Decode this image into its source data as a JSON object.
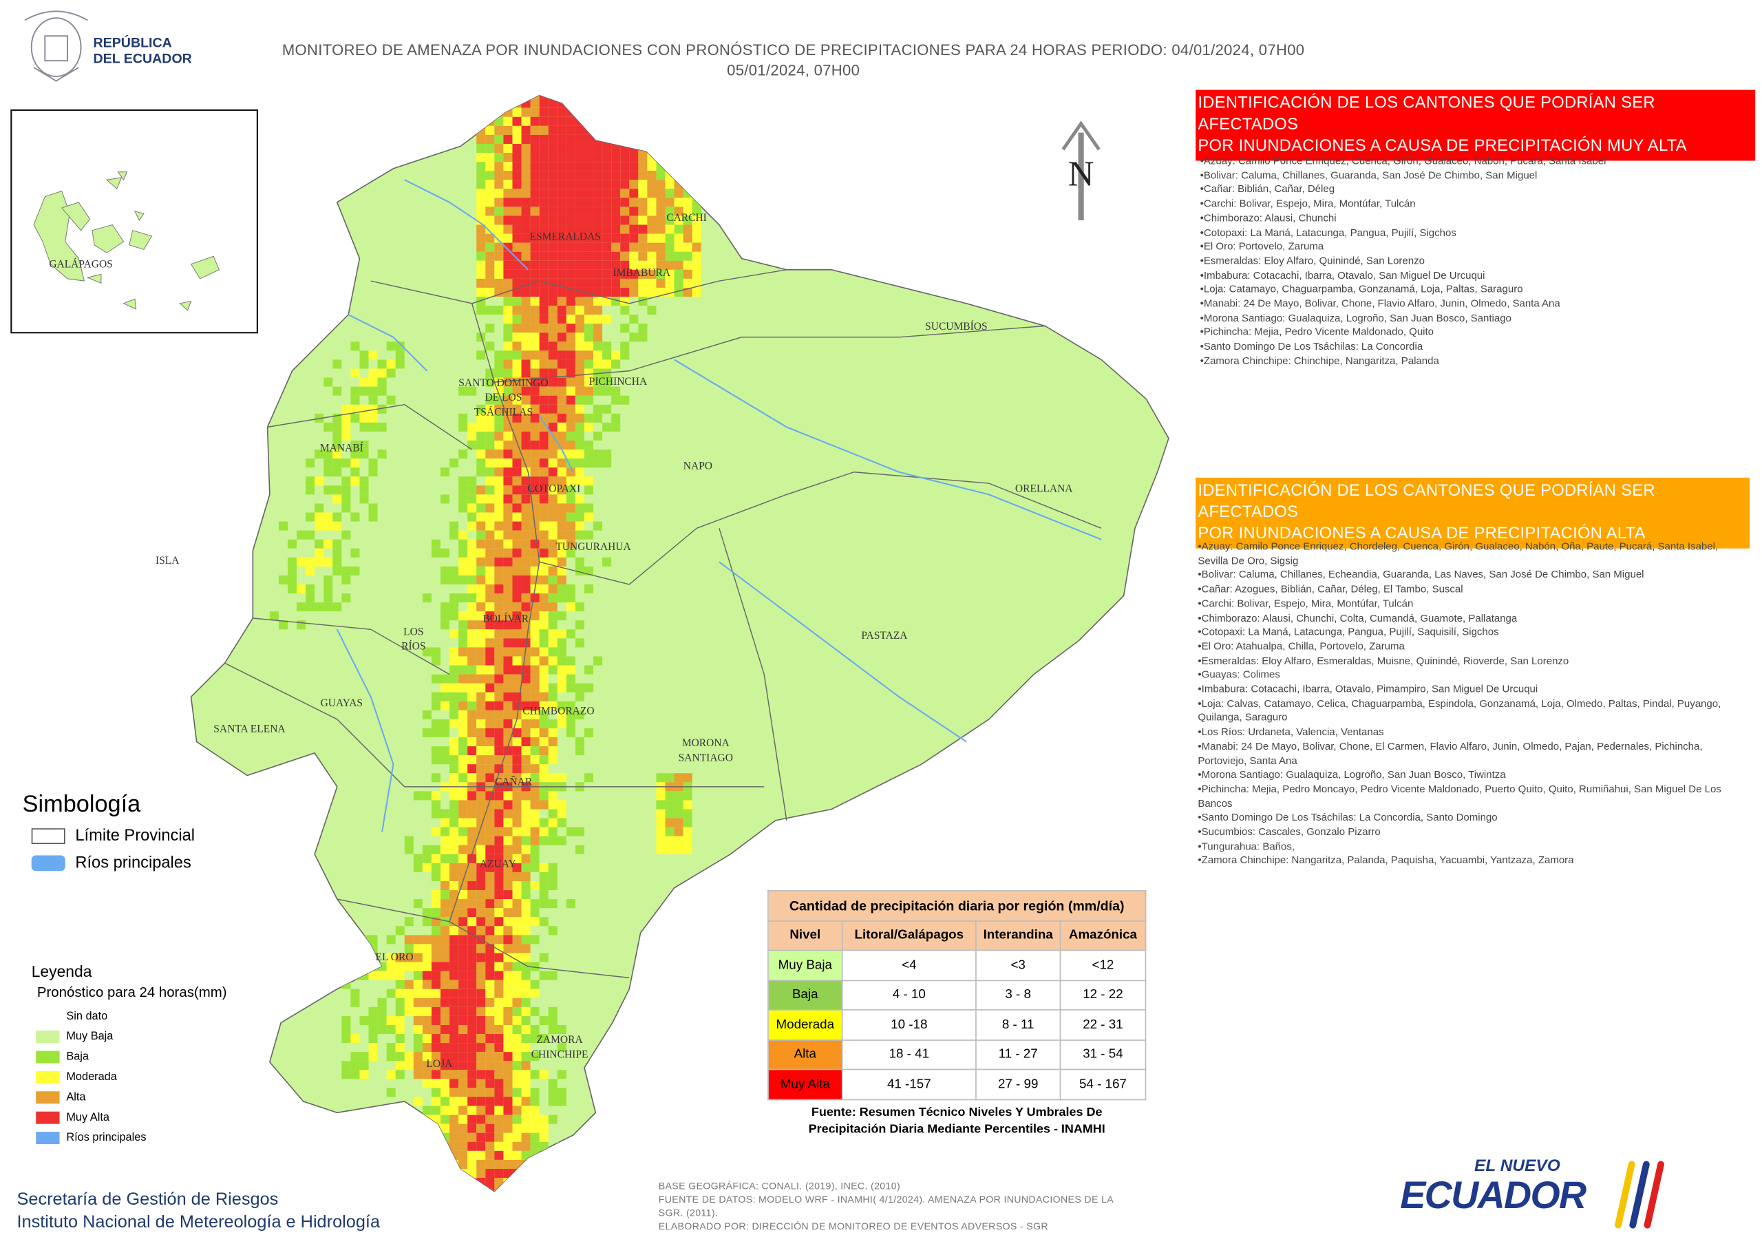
{
  "header": {
    "logo": [
      "REPÚBLICA",
      "DEL ECUADOR"
    ],
    "title": [
      "MONITOREO DE AMENAZA POR INUNDACIONES  CON PRONÓSTICO DE  PRECIPITACIONES PARA 24 HORAS  PERIODO: 04/01/2024, 07H00",
      "05/01/2024, 07H00"
    ]
  },
  "map": {
    "north": "N",
    "inset_label": "GALÁPAGOS",
    "provinces": [
      [
        "ESMERALDAS"
      ],
      [
        "CARCHI"
      ],
      [
        "IMBABURA"
      ],
      [
        "SUCUMBÍOS"
      ],
      [
        "SANTO DOMINGO",
        "DE LOS",
        "TSÁCHILAS"
      ],
      [
        "PICHINCHA"
      ],
      [
        "MANABÍ"
      ],
      [
        "NAPO"
      ],
      [
        "ORELLANA"
      ],
      [
        "COTOPAXI"
      ],
      [
        "ISLA"
      ],
      [
        "TUNGURAHUA"
      ],
      [
        "BOLÍVAR"
      ],
      [
        "LOS",
        "RÍOS"
      ],
      [
        "PASTAZA"
      ],
      [
        "GUAYAS"
      ],
      [
        "CHIMBORAZO"
      ],
      [
        "SANTA ELENA"
      ],
      [
        "MORONA",
        "SANTIAGO"
      ],
      [
        "CAÑAR"
      ],
      [
        "AZUAY"
      ],
      [
        "EL ORO"
      ],
      [
        "ZAMORA",
        "CHINCHIPE"
      ],
      [
        "LOJA"
      ]
    ]
  },
  "alerts": [
    {
      "title": [
        "IDENTIFICACIÓN DE LOS CANTONES QUE PODRÍAN SER AFECTADOS",
        "POR INUNDACIONES  A CAUSA DE PRECIPITACIÓN MUY ALTA"
      ],
      "items": [
        "Azuay: Camilo Ponce Enriquez, Cuenca, Girón, Gualaceo, Nabón, Pucará, Santa Isabel",
        "Bolivar: Caluma, Chillanes, Guaranda, San José De Chimbo, San Miguel",
        "Cañar: Biblián, Cañar, Déleg",
        "Carchi: Bolivar, Espejo, Mira, Montúfar, Tulcán",
        "Chimborazo: Alausi, Chunchi",
        "Cotopaxi: La Maná, Latacunga, Pangua, Pujilí, Sigchos",
        "El Oro: Portovelo, Zaruma",
        "Esmeraldas: Eloy Alfaro, Quinindé, San Lorenzo",
        "Imbabura: Cotacachi, Ibarra, Otavalo, San Miguel De Urcuqui",
        "Loja: Catamayo, Chaguarpamba, Gonzanamá, Loja, Paltas, Saraguro",
        "Manabi: 24 De Mayo, Bolivar, Chone, Flavio Alfaro, Junin, Olmedo, Santa Ana",
        "Morona Santiago: Gualaquiza, Logroño, San Juan Bosco, Santiago",
        "Pichincha: Mejia, Pedro Vicente Maldonado, Quito",
        "Santo Domingo De Los Tsáchilas: La Concordia",
        "Zamora Chinchipe: Chinchipe, Nangaritza, Palanda"
      ]
    },
    {
      "title": [
        "IDENTIFICACIÓN DE LOS CANTONES QUE  PODRÍAN SER AFECTADOS",
        "POR INUNDACIONES  A CAUSA DE PRECIPITACIÓN  ALTA"
      ],
      "items": [
        "Azuay: Camilo Ponce Enriquez, Chordeleg, Cuenca, Girón, Gualaceo, Nabón, Oña, Paute, Pucará, Santa Isabel, Sevilla De Oro, Sigsig",
        "Bolivar: Caluma, Chillanes, Echeandia, Guaranda, Las Naves, San José De Chimbo, San Miguel",
        "Cañar: Azogues, Biblián, Cañar, Déleg, El Tambo, Suscal",
        "Carchi: Bolivar, Espejo, Mira, Montúfar, Tulcán",
        "Chimborazo: Alausi, Chunchi, Colta, Cumandá, Guamote, Pallatanga",
        "Cotopaxi: La Maná, Latacunga, Pangua, Pujilí, Saquisilí, Sigchos",
        "El Oro: Atahualpa, Chilla, Portovelo, Zaruma",
        "Esmeraldas: Eloy Alfaro, Esmeraldas, Muisne, Quinindé, Rioverde, San Lorenzo",
        "Guayas: Colimes",
        "Imbabura: Cotacachi, Ibarra, Otavalo, Pimampiro, San Miguel De Urcuqui",
        "Loja: Calvas, Catamayo, Celica, Chaguarpamba, Espindola, Gonzanamá, Loja, Olmedo, Paltas, Pindal, Puyango, Quilanga, Saraguro",
        "Los Ríos: Urdaneta, Valencia, Ventanas",
        "Manabi: 24 De Mayo, Bolivar, Chone, El Carmen, Flavio Alfaro, Junin, Olmedo, Pajan, Pedernales, Pichincha, Portoviejo, Santa Ana",
        "Morona Santiago: Gualaquiza, Logroño, San Juan Bosco, Tiwintza",
        "Pichincha: Mejia, Pedro Moncayo, Pedro Vicente Maldonado, Puerto Quito, Quito, Rumiñahui, San Miguel De Los Bancos",
        "Santo Domingo De Los Tsáchilas: La Concordia, Santo Domingo",
        "Sucumbios: Cascales, Gonzalo Pizarro",
        "Tungurahua: Baños,",
        "Zamora Chinchipe: Nangaritza, Palanda, Paquisha, Yacuambi, Yantzaza, Zamora"
      ]
    }
  ],
  "symbology": {
    "title": "Simbología",
    "items": [
      "Límite Provincial",
      "Ríos principales"
    ]
  },
  "legend": {
    "title": "Leyenda",
    "subtitle": "Pronóstico para 24 horas(mm)",
    "items": [
      "Sin dato",
      "Muy Baja",
      "Baja",
      "Moderada",
      "Alta",
      "Muy Alta",
      "Ríos principales"
    ]
  },
  "thresholds": {
    "title": "Cantidad de precipitación diaria por región (mm/día)",
    "columns": [
      "Nivel",
      "Litoral/Galápagos",
      "Interandina",
      "Amazónica"
    ],
    "rows": [
      [
        "Muy Baja",
        "<4",
        "<3",
        "<12"
      ],
      [
        "Baja",
        "4 - 10",
        "3 - 8",
        "12 - 22"
      ],
      [
        "Moderada",
        "10 -18",
        "8 - 11",
        "22 - 31"
      ],
      [
        "Alta",
        "18 - 41",
        "11 - 27",
        "31 - 54"
      ],
      [
        "Muy Alta",
        "41 -157",
        "27 - 99",
        "54 - 167"
      ]
    ],
    "source": [
      "Fuente: Resumen Técnico Niveles Y Umbrales De",
      "Precipitación Diaria Mediante Percentiles - INAMHI"
    ]
  },
  "footer": {
    "institutions": [
      "Secretaría de Gestión de Riesgos",
      "Instituto Nacional de Metereología e Hidrología"
    ],
    "notes": [
      "BASE GEOGRÁFICA: CONALI. (2019), INEC. (2010)",
      "FUENTE DE DATOS: MODELO WRF - INAMHI( 4/1/2024).  AMENAZA POR INUNDACIONES DE LA",
      "SGR. (2011).",
      "ELABORADO POR: DIRECCIÓN DE MONITOREO DE EVENTOS ADVERSOS - SGR"
    ],
    "brand": [
      "EL NUEVO",
      "ECUADOR"
    ]
  }
}
